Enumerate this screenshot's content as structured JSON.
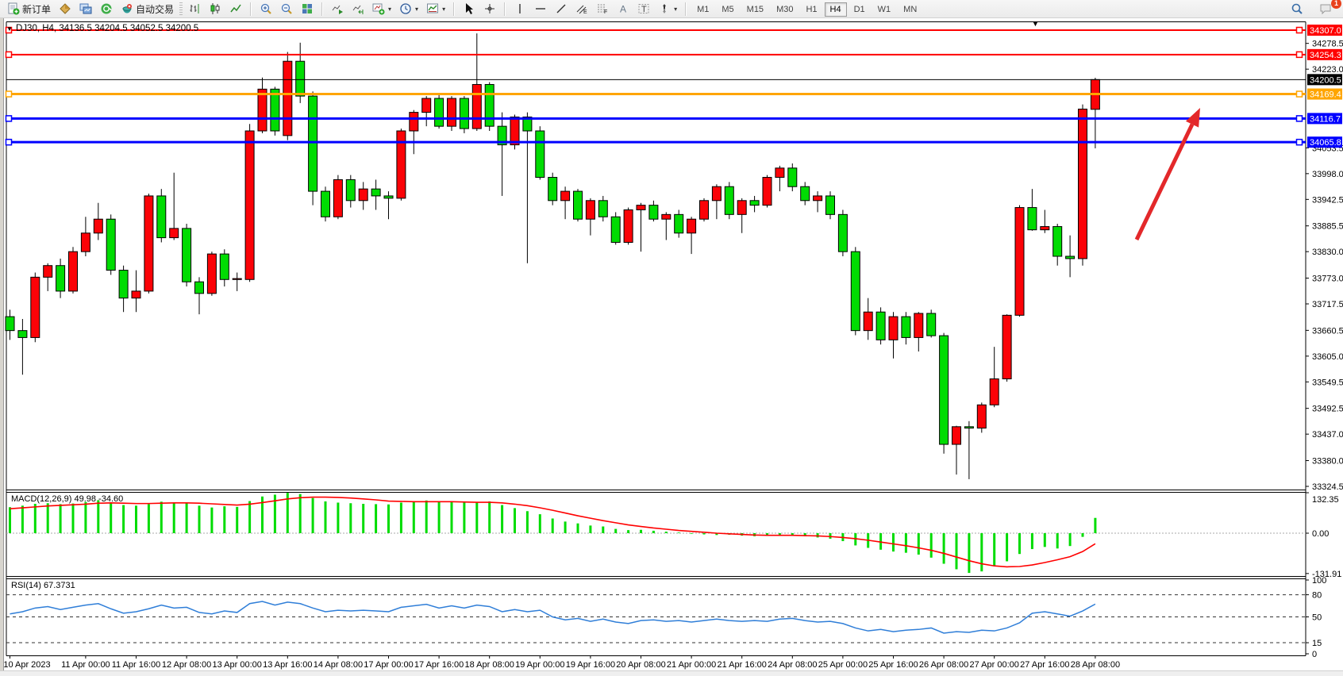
{
  "toolbar": {
    "buttons": {
      "new_order": "新订单",
      "autotrading": "自动交易"
    },
    "timeframes": [
      "M1",
      "M5",
      "M15",
      "M30",
      "H1",
      "H4",
      "D1",
      "W1",
      "MN"
    ],
    "active_timeframe": "H4",
    "notification_badge": "1"
  },
  "chart_data": {
    "type": "candlestick",
    "title": "DJ30, H4, 34136.5 34204.5 34052.5 34200.5",
    "symbol": "DJ30",
    "timeframe": "H4",
    "ohlc_current": {
      "open": 34136.5,
      "high": 34204.5,
      "low": 34052.5,
      "close": 34200.5
    },
    "colors": {
      "up": "#fb0207",
      "down": "#00dc02",
      "wick": "#000000",
      "background": "#ffffff",
      "rsi": "#2f7ed8",
      "macd_hist": "#00dc02",
      "macd_signal": "#ff0000",
      "arrow": "#e3282a"
    },
    "price_axis": {
      "visible_range": [
        33324.5,
        34307.0
      ],
      "ticks": [
        "34278.5",
        "34223.0",
        "34053.5",
        "33998.0",
        "33942.5",
        "33885.5",
        "33830.0",
        "33773.0",
        "33717.5",
        "33660.5",
        "33605.0",
        "33549.5",
        "33492.5",
        "33437.0",
        "33380.0",
        "33324.5"
      ]
    },
    "hlines": [
      {
        "price": 34307.0,
        "label": "34307.0",
        "color": "#ff0000",
        "width": 2,
        "handles": true
      },
      {
        "price": 34254.3,
        "label": "34254.3",
        "color": "#ff0000",
        "width": 2,
        "handles": true
      },
      {
        "price": 34200.5,
        "label": "34200.5",
        "color": "#000000",
        "width": 1,
        "handles": false
      },
      {
        "price": 34169.4,
        "label": "34169.4",
        "color": "#ffa500",
        "width": 3,
        "handles": true
      },
      {
        "price": 34116.7,
        "label": "34116.7",
        "color": "#0000ff",
        "width": 3,
        "handles": true
      },
      {
        "price": 34065.8,
        "label": "34065.8",
        "color": "#0000ff",
        "width": 3,
        "handles": true
      }
    ],
    "time_axis": [
      {
        "label": "10 Apr 2023",
        "i": 0
      },
      {
        "label": "11 Apr 00:00",
        "i": 6
      },
      {
        "label": "11 Apr 16:00",
        "i": 10
      },
      {
        "label": "12 Apr 08:00",
        "i": 14
      },
      {
        "label": "13 Apr 00:00",
        "i": 18
      },
      {
        "label": "13 Apr 16:00",
        "i": 22
      },
      {
        "label": "14 Apr 08:00",
        "i": 26
      },
      {
        "label": "17 Apr 00:00",
        "i": 30
      },
      {
        "label": "17 Apr 16:00",
        "i": 34
      },
      {
        "label": "18 Apr 08:00",
        "i": 38
      },
      {
        "label": "19 Apr 00:00",
        "i": 42
      },
      {
        "label": "19 Apr 16:00",
        "i": 46
      },
      {
        "label": "20 Apr 08:00",
        "i": 50
      },
      {
        "label": "21 Apr 00:00",
        "i": 54
      },
      {
        "label": "21 Apr 16:00",
        "i": 58
      },
      {
        "label": "24 Apr 08:00",
        "i": 62
      },
      {
        "label": "25 Apr 00:00",
        "i": 66
      },
      {
        "label": "25 Apr 16:00",
        "i": 70
      },
      {
        "label": "26 Apr 08:00",
        "i": 74
      },
      {
        "label": "27 Apr 00:00",
        "i": 78
      },
      {
        "label": "27 Apr 16:00",
        "i": 82
      },
      {
        "label": "28 Apr 08:00",
        "i": 86
      }
    ],
    "candles": [
      [
        33690,
        33705,
        33640,
        33660
      ],
      [
        33660,
        33685,
        33565,
        33645
      ],
      [
        33645,
        33785,
        33635,
        33775
      ],
      [
        33775,
        33805,
        33745,
        33800
      ],
      [
        33800,
        33815,
        33730,
        33745
      ],
      [
        33745,
        33840,
        33740,
        33830
      ],
      [
        33830,
        33905,
        33820,
        33870
      ],
      [
        33870,
        33935,
        33855,
        33900
      ],
      [
        33900,
        33910,
        33780,
        33790
      ],
      [
        33790,
        33800,
        33700,
        33730
      ],
      [
        33730,
        33790,
        33700,
        33745
      ],
      [
        33745,
        33955,
        33740,
        33950
      ],
      [
        33950,
        33965,
        33850,
        33860
      ],
      [
        33860,
        34000,
        33855,
        33880
      ],
      [
        33880,
        33890,
        33755,
        33765
      ],
      [
        33765,
        33775,
        33695,
        33740
      ],
      [
        33740,
        33830,
        33735,
        33825
      ],
      [
        33825,
        33835,
        33755,
        33770
      ],
      [
        33770,
        33785,
        33745,
        33772
      ],
      [
        33770,
        34105,
        33765,
        34090
      ],
      [
        34090,
        34205,
        34085,
        34180
      ],
      [
        34180,
        34185,
        34080,
        34090
      ],
      [
        34080,
        34260,
        34070,
        34240
      ],
      [
        34240,
        34280,
        34150,
        34165
      ],
      [
        34165,
        34175,
        33930,
        33960
      ],
      [
        33960,
        33970,
        33895,
        33905
      ],
      [
        33905,
        33995,
        33900,
        33985
      ],
      [
        33985,
        33995,
        33925,
        33940
      ],
      [
        33940,
        33980,
        33920,
        33965
      ],
      [
        33965,
        33985,
        33920,
        33950
      ],
      [
        33950,
        33960,
        33900,
        33945
      ],
      [
        33945,
        34095,
        33940,
        34090
      ],
      [
        34090,
        34135,
        34040,
        34130
      ],
      [
        34130,
        34165,
        34100,
        34160
      ],
      [
        34160,
        34170,
        34095,
        34100
      ],
      [
        34100,
        34165,
        34090,
        34160
      ],
      [
        34160,
        34165,
        34085,
        34095
      ],
      [
        34095,
        34300,
        34090,
        34190
      ],
      [
        34190,
        34195,
        34090,
        34100
      ],
      [
        34100,
        34130,
        33950,
        34060
      ],
      [
        34060,
        34125,
        34050,
        34120
      ],
      [
        34120,
        34130,
        33805,
        34090
      ],
      [
        34090,
        34100,
        33985,
        33990
      ],
      [
        33990,
        34000,
        33930,
        33940
      ],
      [
        33940,
        33970,
        33900,
        33960
      ],
      [
        33960,
        33965,
        33895,
        33900
      ],
      [
        33900,
        33945,
        33865,
        33940
      ],
      [
        33940,
        33950,
        33895,
        33905
      ],
      [
        33905,
        33915,
        33845,
        33850
      ],
      [
        33850,
        33925,
        33845,
        33920
      ],
      [
        33920,
        33935,
        33830,
        33930
      ],
      [
        33930,
        33940,
        33895,
        33900
      ],
      [
        33900,
        33915,
        33855,
        33910
      ],
      [
        33910,
        33920,
        33860,
        33870
      ],
      [
        33870,
        33905,
        33825,
        33900
      ],
      [
        33900,
        33945,
        33895,
        33940
      ],
      [
        33940,
        33975,
        33900,
        33970
      ],
      [
        33970,
        33980,
        33900,
        33910
      ],
      [
        33910,
        33945,
        33870,
        33940
      ],
      [
        33940,
        33950,
        33915,
        33930
      ],
      [
        33930,
        33995,
        33925,
        33990
      ],
      [
        33990,
        34015,
        33960,
        34010
      ],
      [
        34010,
        34020,
        33960,
        33970
      ],
      [
        33970,
        33980,
        33930,
        33940
      ],
      [
        33940,
        33960,
        33915,
        33950
      ],
      [
        33950,
        33960,
        33900,
        33910
      ],
      [
        33910,
        33920,
        33820,
        33830
      ],
      [
        33830,
        33840,
        33650,
        33660
      ],
      [
        33660,
        33730,
        33640,
        33700
      ],
      [
        33700,
        33710,
        33630,
        33640
      ],
      [
        33640,
        33700,
        33600,
        33690
      ],
      [
        33690,
        33700,
        33630,
        33645
      ],
      [
        33645,
        33700,
        33615,
        33697
      ],
      [
        33697,
        33705,
        33645,
        33649
      ],
      [
        33649,
        33655,
        33395,
        33415
      ],
      [
        33415,
        33455,
        33350,
        33453
      ],
      [
        33453,
        33465,
        33340,
        33450
      ],
      [
        33450,
        33505,
        33440,
        33500
      ],
      [
        33500,
        33625,
        33495,
        33556
      ],
      [
        33556,
        33695,
        33550,
        33693
      ],
      [
        33693,
        33930,
        33690,
        33925
      ],
      [
        33925,
        33965,
        33875,
        33877
      ],
      [
        33877,
        33920,
        33870,
        33884
      ],
      [
        33884,
        33890,
        33800,
        33820
      ],
      [
        33820,
        33865,
        33775,
        33815
      ],
      [
        33815,
        34147,
        33800,
        34137
      ],
      [
        34136.5,
        34204.5,
        34052.5,
        34200.5
      ]
    ],
    "arrow": {
      "from": [
        1432,
        302
      ],
      "to": [
        1512,
        136
      ]
    },
    "macd": {
      "label": "MACD(12,26,9) 49.98 -34.60",
      "value": 49.98,
      "signal_value": -34.6,
      "axis_ticks": [
        "132.35",
        "0.00",
        "-131.91"
      ],
      "range": [
        -131.91,
        132.35
      ],
      "histogram": [
        85,
        90,
        96,
        98,
        95,
        97,
        102,
        108,
        100,
        92,
        90,
        95,
        103,
        100,
        98,
        90,
        84,
        88,
        86,
        105,
        120,
        126,
        132,
        128,
        115,
        104,
        100,
        98,
        96,
        95,
        94,
        100,
        104,
        107,
        103,
        104,
        100,
        100,
        104,
        92,
        82,
        72,
        62,
        48,
        38,
        32,
        25,
        22,
        14,
        10,
        11,
        8,
        5,
        2,
        -2,
        -4,
        -6,
        -5,
        -8,
        -10,
        -8,
        -5,
        -7,
        -10,
        -14,
        -18,
        -26,
        -40,
        -48,
        -54,
        -60,
        -64,
        -70,
        -80,
        -100,
        -118,
        -130,
        -125,
        -108,
        -92,
        -68,
        -52,
        -45,
        -50,
        -42,
        -12,
        49.98
      ],
      "signal": [
        80,
        83,
        86,
        89,
        91,
        93,
        95,
        98,
        99,
        98,
        97,
        97,
        98,
        99,
        99,
        98,
        96,
        94,
        92,
        95,
        100,
        106,
        112,
        116,
        118,
        118,
        117,
        115,
        112,
        109,
        105,
        104,
        103,
        103,
        103,
        103,
        102,
        101,
        101,
        99,
        95,
        90,
        83,
        75,
        66,
        57,
        49,
        41,
        34,
        27,
        22,
        17,
        13,
        9,
        6,
        3,
        0,
        -2,
        -4,
        -6,
        -7,
        -7,
        -7,
        -8,
        -9,
        -11,
        -14,
        -18,
        -23,
        -29,
        -35,
        -41,
        -48,
        -56,
        -66,
        -78,
        -90,
        -100,
        -107,
        -110,
        -109,
        -104,
        -96,
        -87,
        -77,
        -60,
        -34.6
      ]
    },
    "rsi": {
      "label": "RSI(14) 67.3731",
      "value": 67.3731,
      "axis_ticks": [
        "100",
        "80",
        "50",
        "15",
        "0"
      ],
      "levels": [
        80,
        50,
        15
      ],
      "range": [
        0,
        100
      ],
      "values": [
        54,
        57,
        62,
        64,
        60,
        63,
        66,
        68,
        61,
        55,
        57,
        61,
        66,
        62,
        63,
        56,
        54,
        58,
        56,
        68,
        71,
        66,
        70,
        68,
        62,
        57,
        59,
        58,
        59,
        58,
        57,
        63,
        65,
        67,
        62,
        65,
        62,
        66,
        64,
        57,
        60,
        57,
        59,
        50,
        46,
        48,
        44,
        47,
        43,
        41,
        45,
        46,
        44,
        45,
        43,
        45,
        47,
        45,
        44,
        45,
        44,
        47,
        48,
        45,
        43,
        44,
        41,
        35,
        31,
        33,
        30,
        32,
        33,
        35,
        28,
        30,
        29,
        32,
        31,
        35,
        42,
        55,
        57,
        54,
        51,
        58,
        67.37
      ]
    }
  }
}
